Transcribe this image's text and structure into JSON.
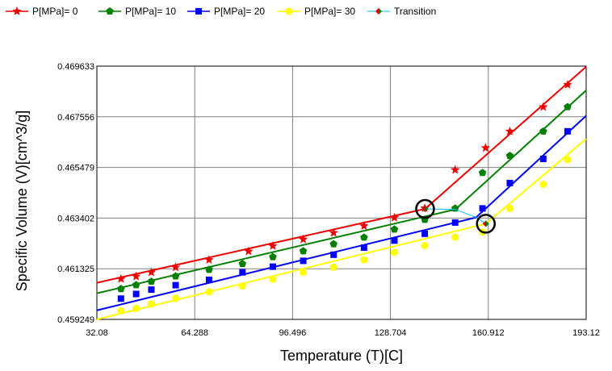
{
  "chart_data": {
    "type": "line",
    "xlabel": "Temperature (T)[C]",
    "ylabel": "Specific Volume (V)[cm^3/g]",
    "xlim": [
      32.08,
      193.12
    ],
    "ylim": [
      0.459249,
      0.469633
    ],
    "x_ticks": [
      "32.08",
      "64.288",
      "96.496",
      "128.704",
      "160.912",
      "193.12"
    ],
    "y_ticks": [
      "0.459249",
      "0.461325",
      "0.463402",
      "0.465479",
      "0.467556",
      "0.469633"
    ],
    "grid": true,
    "legend_position": "top",
    "series": [
      {
        "name": "P[MPa]= 0",
        "color": "#ee0000",
        "marker": "star",
        "line": [
          [
            32.08,
            0.46075
          ],
          [
            140.1,
            0.46378
          ],
          [
            193.12,
            0.46961
          ]
        ],
        "points": [
          [
            40,
            0.46091
          ],
          [
            45,
            0.46101
          ],
          [
            50,
            0.46118
          ],
          [
            58,
            0.46138
          ],
          [
            69,
            0.46169
          ],
          [
            82,
            0.46204
          ],
          [
            90,
            0.46226
          ],
          [
            100,
            0.46253
          ],
          [
            110,
            0.4628
          ],
          [
            120,
            0.46308
          ],
          [
            130,
            0.46342
          ],
          [
            140,
            0.46381
          ],
          [
            150,
            0.46538
          ],
          [
            160,
            0.46628
          ],
          [
            168,
            0.46696
          ],
          [
            179,
            0.46796
          ],
          [
            187,
            0.46887
          ]
        ]
      },
      {
        "name": "P[MPa]= 10",
        "color": "#008000",
        "marker": "pentagon",
        "line": [
          [
            32.08,
            0.46032
          ],
          [
            150.1,
            0.46376
          ],
          [
            193.12,
            0.46864
          ]
        ],
        "points": [
          [
            40,
            0.4605
          ],
          [
            45,
            0.46066
          ],
          [
            50,
            0.4608
          ],
          [
            58,
            0.46102
          ],
          [
            69,
            0.46129
          ],
          [
            80,
            0.46153
          ],
          [
            90,
            0.46181
          ],
          [
            100,
            0.46205
          ],
          [
            110,
            0.46234
          ],
          [
            120,
            0.46261
          ],
          [
            130,
            0.46294
          ],
          [
            140,
            0.46334
          ],
          [
            150,
            0.4638
          ],
          [
            159,
            0.46526
          ],
          [
            168,
            0.46596
          ],
          [
            179,
            0.46696
          ],
          [
            187,
            0.46796
          ]
        ]
      },
      {
        "name": "P[MPa]= 20",
        "color": "#0000ff",
        "marker": "square",
        "line": [
          [
            32.08,
            0.45962
          ],
          [
            156.9,
            0.46343
          ],
          [
            193.12,
            0.4676
          ]
        ],
        "points": [
          [
            40,
            0.4601
          ],
          [
            45,
            0.46029
          ],
          [
            50,
            0.46047
          ],
          [
            58,
            0.46065
          ],
          [
            69,
            0.46087
          ],
          [
            80,
            0.46118
          ],
          [
            90,
            0.46141
          ],
          [
            100,
            0.46165
          ],
          [
            110,
            0.4619
          ],
          [
            120,
            0.46219
          ],
          [
            130,
            0.46248
          ],
          [
            140,
            0.46276
          ],
          [
            150,
            0.46322
          ],
          [
            159,
            0.4638
          ],
          [
            168,
            0.46484
          ],
          [
            179,
            0.46583
          ],
          [
            187,
            0.46696
          ]
        ]
      },
      {
        "name": "P[MPa]= 30",
        "color": "#ffff00",
        "marker": "circle",
        "line": [
          [
            32.08,
            0.45925
          ],
          [
            160.1,
            0.46317
          ],
          [
            193.12,
            0.46665
          ]
        ],
        "points": [
          [
            40,
            0.4596
          ],
          [
            45,
            0.4597
          ],
          [
            50,
            0.45988
          ],
          [
            58,
            0.46011
          ],
          [
            69,
            0.46038
          ],
          [
            80,
            0.46062
          ],
          [
            90,
            0.4609
          ],
          [
            100,
            0.46118
          ],
          [
            110,
            0.46139
          ],
          [
            120,
            0.46169
          ],
          [
            130,
            0.462
          ],
          [
            140,
            0.46228
          ],
          [
            150,
            0.46262
          ],
          [
            159,
            0.46283
          ],
          [
            168,
            0.4638
          ],
          [
            179,
            0.46479
          ],
          [
            187,
            0.4658
          ]
        ]
      },
      {
        "name": "Transition",
        "color": "#00bfff",
        "marker": "diamond",
        "line": [
          [
            140.1,
            0.46378
          ],
          [
            150.1,
            0.46376
          ],
          [
            156.9,
            0.46343
          ],
          [
            160.1,
            0.46317
          ]
        ],
        "points": [
          [
            140.1,
            0.46378
          ],
          [
            160.1,
            0.46317
          ]
        ]
      }
    ],
    "highlighted_points": [
      [
        140.1,
        0.46378
      ],
      [
        160.1,
        0.46317
      ]
    ]
  }
}
